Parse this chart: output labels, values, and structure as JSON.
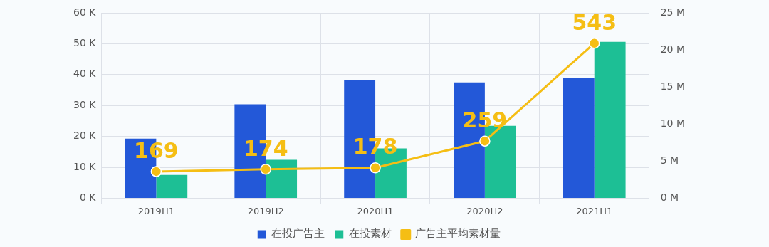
{
  "chart_data": {
    "type": "bar",
    "categories": [
      "2019H1",
      "2019H2",
      "2020H1",
      "2020H2",
      "2021H1"
    ],
    "series": [
      {
        "name": "在投广告主",
        "color": "#2358d8",
        "values": [
          19.3,
          30.4,
          38.3,
          37.5,
          38.8
        ]
      },
      {
        "name": "在投素材",
        "color": "#1dbf95",
        "values": [
          7.5,
          12.4,
          16.1,
          23.4,
          50.6
        ]
      },
      {
        "name": "广告主平均素材量",
        "type": "line",
        "axis": "y2",
        "color": "#f5be14",
        "values": [
          3.6,
          3.9,
          4.1,
          7.7,
          20.9
        ]
      }
    ],
    "annotations": [
      "169",
      "174",
      "178",
      "259",
      "543"
    ],
    "ylim": [
      0,
      60
    ],
    "yticks": [
      {
        "value": 0,
        "label": "0 K"
      },
      {
        "value": 10,
        "label": "10 K"
      },
      {
        "value": 20,
        "label": "20 K"
      },
      {
        "value": 30,
        "label": "30 K"
      },
      {
        "value": 40,
        "label": "40 K"
      },
      {
        "value": 50,
        "label": "50 K"
      },
      {
        "value": 60,
        "label": "60 K"
      }
    ],
    "y2lim": [
      0,
      25
    ],
    "y2ticks": [
      {
        "value": 0,
        "label": "0 M"
      },
      {
        "value": 5,
        "label": "5 M"
      },
      {
        "value": 10,
        "label": "10 M"
      },
      {
        "value": 15,
        "label": "15 M"
      },
      {
        "value": 20,
        "label": "20 M"
      },
      {
        "value": 25,
        "label": "25 M"
      }
    ],
    "grid": true,
    "legend": "bottom",
    "marker": "circle",
    "line_style": "solid"
  }
}
